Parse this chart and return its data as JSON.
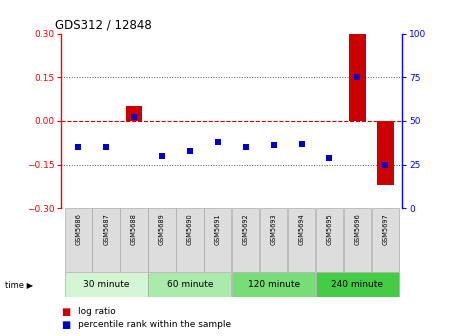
{
  "title": "GDS312 / 12848",
  "samples": [
    "GSM5686",
    "GSM5687",
    "GSM5688",
    "GSM5689",
    "GSM5690",
    "GSM5691",
    "GSM5692",
    "GSM5693",
    "GSM5694",
    "GSM5695",
    "GSM5696",
    "GSM5697"
  ],
  "log_ratio": [
    0.0,
    0.0,
    0.05,
    0.0,
    0.0,
    0.0,
    0.0,
    0.0,
    0.0,
    0.0,
    0.3,
    -0.22
  ],
  "percentile_rank": [
    35,
    35,
    52,
    30,
    33,
    38,
    35,
    36,
    37,
    29,
    75,
    25
  ],
  "groups": [
    {
      "label": "30 minute",
      "start": 0,
      "end": 3,
      "color": "#d4f5d4"
    },
    {
      "label": "60 minute",
      "start": 3,
      "end": 6,
      "color": "#aaeaaa"
    },
    {
      "label": "120 minute",
      "start": 6,
      "end": 9,
      "color": "#77dd77"
    },
    {
      "label": "240 minute",
      "start": 9,
      "end": 12,
      "color": "#44cc44"
    }
  ],
  "ylim_left": [
    -0.3,
    0.3
  ],
  "ylim_right": [
    0,
    100
  ],
  "yticks_left": [
    -0.3,
    -0.15,
    0,
    0.15,
    0.3
  ],
  "yticks_right": [
    0,
    25,
    50,
    75,
    100
  ],
  "bar_color": "#cc0000",
  "dot_color": "#0000cc",
  "hline_color": "#cc0000",
  "dotline_color": "#555555",
  "sample_box_color": "#dddddd",
  "time_label": "time",
  "legend_items": [
    {
      "color": "#cc0000",
      "label": "log ratio"
    },
    {
      "color": "#0000cc",
      "label": "percentile rank within the sample"
    }
  ]
}
